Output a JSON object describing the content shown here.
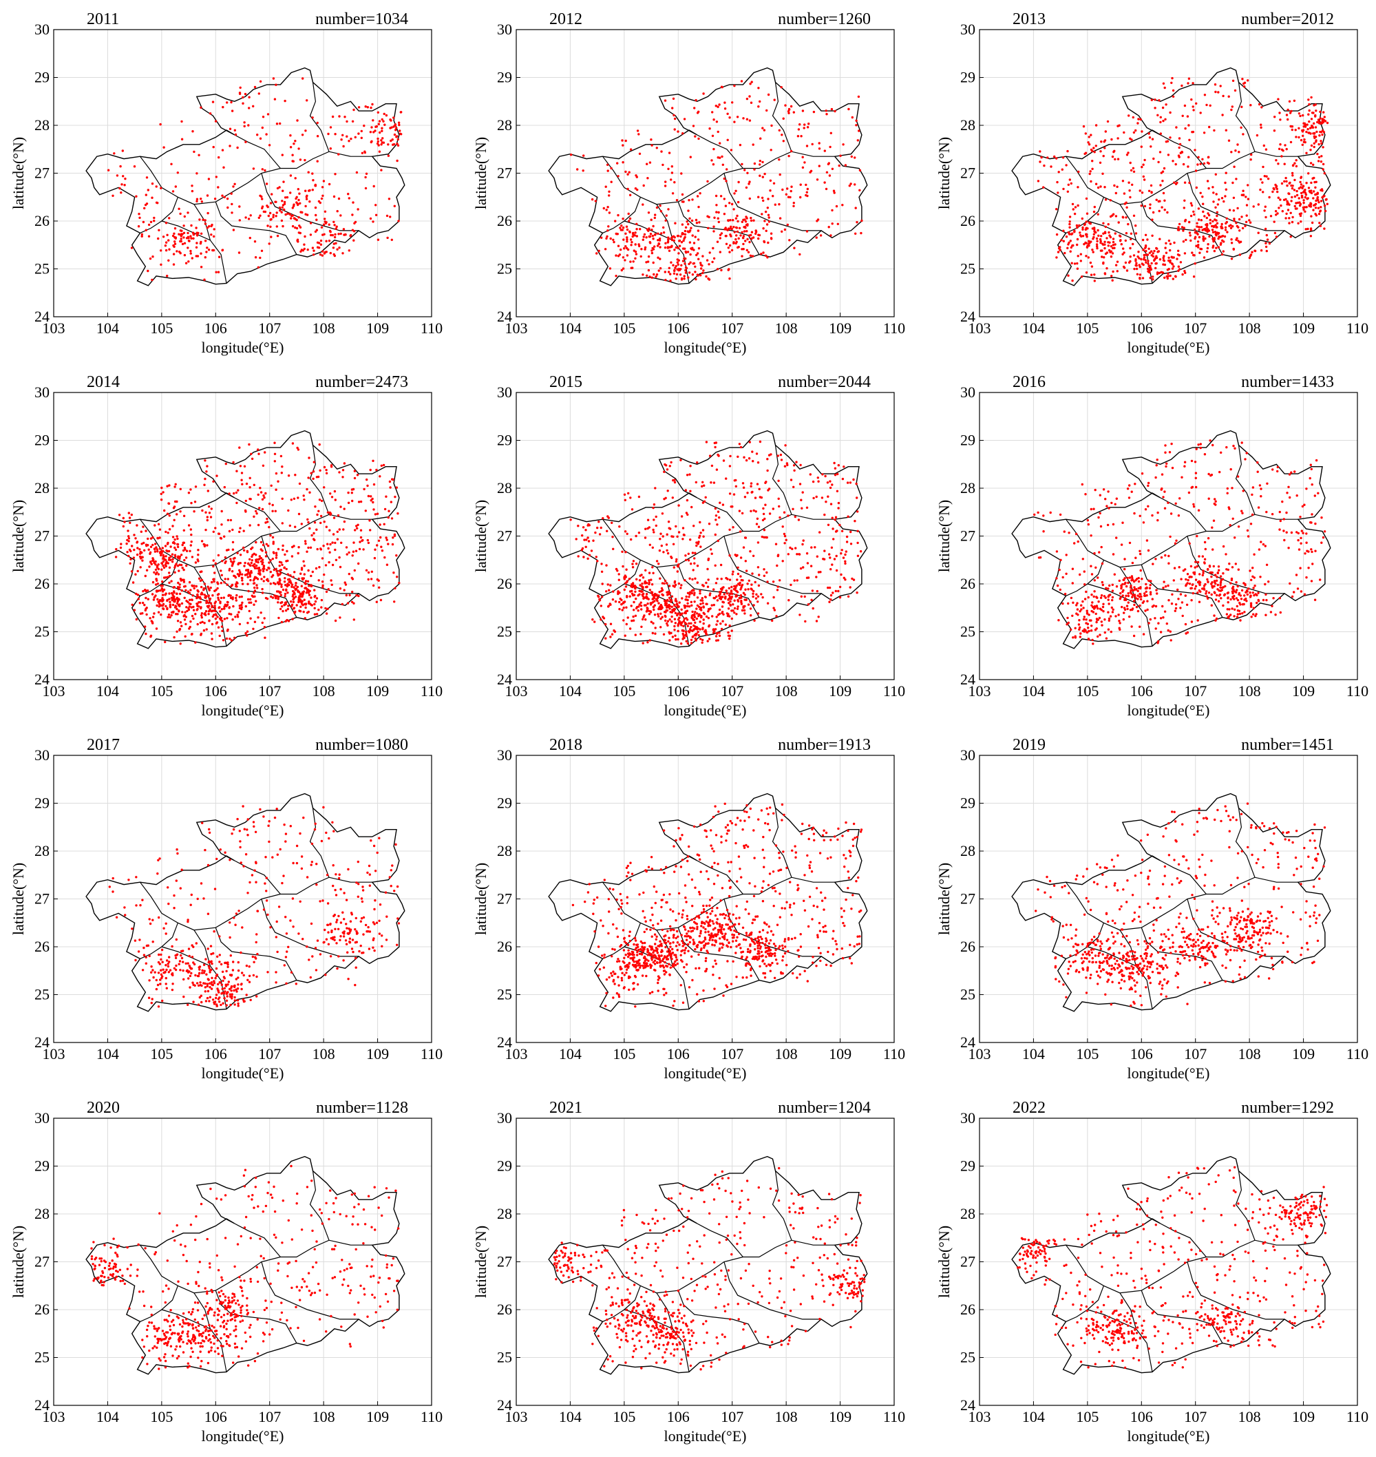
{
  "figure": {
    "tick_color": "#000000",
    "grid_color": "#dcdcdc",
    "marker_color": "#ff0000",
    "boundary_color": "#000000",
    "x_ticks": [
      "103",
      "104",
      "105",
      "106",
      "107",
      "108",
      "109",
      "110"
    ],
    "y_ticks": [
      "24",
      "25",
      "26",
      "27",
      "28",
      "29",
      "30"
    ]
  },
  "chart_data": [
    {
      "type": "scatter",
      "title": "2011",
      "annotation": "number=1034",
      "count": 1034,
      "xlabel": "longitude(°E)",
      "ylabel": "latitude(°N)",
      "xlim": [
        103,
        110
      ],
      "ylim": [
        24,
        30
      ],
      "grid": true,
      "hotspots": [
        [
          107.3,
          26.2
        ],
        [
          108.0,
          25.6
        ],
        [
          105.4,
          25.6
        ],
        [
          109.2,
          27.9
        ]
      ]
    },
    {
      "type": "scatter",
      "title": "2012",
      "annotation": "number=1260",
      "count": 1260,
      "xlabel": "longitude(°E)",
      "ylabel": "latitude(°N)",
      "xlim": [
        103,
        110
      ],
      "ylim": [
        24,
        30
      ],
      "grid": true,
      "hotspots": [
        [
          106.1,
          24.9
        ],
        [
          105.2,
          25.6
        ],
        [
          106.0,
          25.6
        ],
        [
          107.2,
          25.8
        ]
      ]
    },
    {
      "type": "scatter",
      "title": "2013",
      "annotation": "number=2012",
      "count": 2012,
      "xlabel": "longitude(°E)",
      "ylabel": "latitude(°N)",
      "xlim": [
        103,
        110
      ],
      "ylim": [
        24,
        30
      ],
      "grid": true,
      "hotspots": [
        [
          107.3,
          25.8
        ],
        [
          106.3,
          25.1
        ],
        [
          105.2,
          25.6
        ],
        [
          109.0,
          26.5
        ],
        [
          109.2,
          28.0
        ]
      ]
    },
    {
      "type": "scatter",
      "title": "2014",
      "annotation": "number=2473",
      "count": 2473,
      "xlabel": "longitude(°E)",
      "ylabel": "latitude(°N)",
      "xlim": [
        103,
        110
      ],
      "ylim": [
        24,
        30
      ],
      "grid": true,
      "hotspots": [
        [
          105.2,
          25.7
        ],
        [
          106.0,
          25.5
        ],
        [
          106.8,
          26.3
        ],
        [
          105.0,
          26.6
        ],
        [
          107.5,
          25.8
        ]
      ]
    },
    {
      "type": "scatter",
      "title": "2015",
      "annotation": "number=2044",
      "count": 2044,
      "xlabel": "longitude(°E)",
      "ylabel": "latitude(°N)",
      "xlim": [
        103,
        110
      ],
      "ylim": [
        24,
        30
      ],
      "grid": true,
      "hotspots": [
        [
          105.9,
          25.5
        ],
        [
          105.3,
          25.8
        ],
        [
          106.3,
          25.1
        ],
        [
          107.0,
          25.8
        ]
      ]
    },
    {
      "type": "scatter",
      "title": "2016",
      "annotation": "number=1433",
      "count": 1433,
      "xlabel": "longitude(°E)",
      "ylabel": "latitude(°N)",
      "xlim": [
        103,
        110
      ],
      "ylim": [
        24,
        30
      ],
      "grid": true,
      "hotspots": [
        [
          105.8,
          25.8
        ],
        [
          107.2,
          26.1
        ],
        [
          107.8,
          25.7
        ],
        [
          105.0,
          25.3
        ]
      ]
    },
    {
      "type": "scatter",
      "title": "2017",
      "annotation": "number=1080",
      "count": 1080,
      "xlabel": "longitude(°E)",
      "ylabel": "latitude(°N)",
      "xlim": [
        103,
        110
      ],
      "ylim": [
        24,
        30
      ],
      "grid": true,
      "hotspots": [
        [
          106.1,
          25.0
        ],
        [
          105.9,
          25.5
        ],
        [
          108.5,
          26.3
        ],
        [
          105.2,
          25.6
        ]
      ]
    },
    {
      "type": "scatter",
      "title": "2018",
      "annotation": "number=1913",
      "count": 1913,
      "xlabel": "longitude(°E)",
      "ylabel": "latitude(°N)",
      "xlim": [
        103,
        110
      ],
      "ylim": [
        24,
        30
      ],
      "grid": true,
      "hotspots": [
        [
          105.8,
          25.9
        ],
        [
          105.2,
          25.7
        ],
        [
          106.5,
          26.3
        ],
        [
          107.5,
          26.0
        ]
      ]
    },
    {
      "type": "scatter",
      "title": "2019",
      "annotation": "number=1451",
      "count": 1451,
      "xlabel": "longitude(°E)",
      "ylabel": "latitude(°N)",
      "xlim": [
        103,
        110
      ],
      "ylim": [
        24,
        30
      ],
      "grid": true,
      "hotspots": [
        [
          105.2,
          25.8
        ],
        [
          106.0,
          25.6
        ],
        [
          107.0,
          26.0
        ],
        [
          108.0,
          26.4
        ]
      ]
    },
    {
      "type": "scatter",
      "title": "2020",
      "annotation": "number=1128",
      "count": 1128,
      "xlabel": "longitude(°E)",
      "ylabel": "latitude(°N)",
      "xlim": [
        103,
        110
      ],
      "ylim": [
        24,
        30
      ],
      "grid": true,
      "hotspots": [
        [
          105.2,
          25.5
        ],
        [
          105.8,
          25.4
        ],
        [
          106.2,
          26.0
        ],
        [
          103.9,
          26.8
        ]
      ]
    },
    {
      "type": "scatter",
      "title": "2021",
      "annotation": "number=1204",
      "count": 1204,
      "xlabel": "longitude(°E)",
      "ylabel": "latitude(°N)",
      "xlim": [
        103,
        110
      ],
      "ylim": [
        24,
        30
      ],
      "grid": true,
      "hotspots": [
        [
          105.2,
          25.9
        ],
        [
          105.8,
          25.5
        ],
        [
          103.8,
          27.0
        ],
        [
          109.2,
          26.6
        ]
      ]
    },
    {
      "type": "scatter",
      "title": "2022",
      "annotation": "number=1292",
      "count": 1292,
      "xlabel": "longitude(°E)",
      "ylabel": "latitude(°N)",
      "xlim": [
        103,
        110
      ],
      "ylim": [
        24,
        30
      ],
      "grid": true,
      "hotspots": [
        [
          105.5,
          25.6
        ],
        [
          107.5,
          25.8
        ],
        [
          103.9,
          27.2
        ],
        [
          109.0,
          28.0
        ]
      ]
    }
  ]
}
